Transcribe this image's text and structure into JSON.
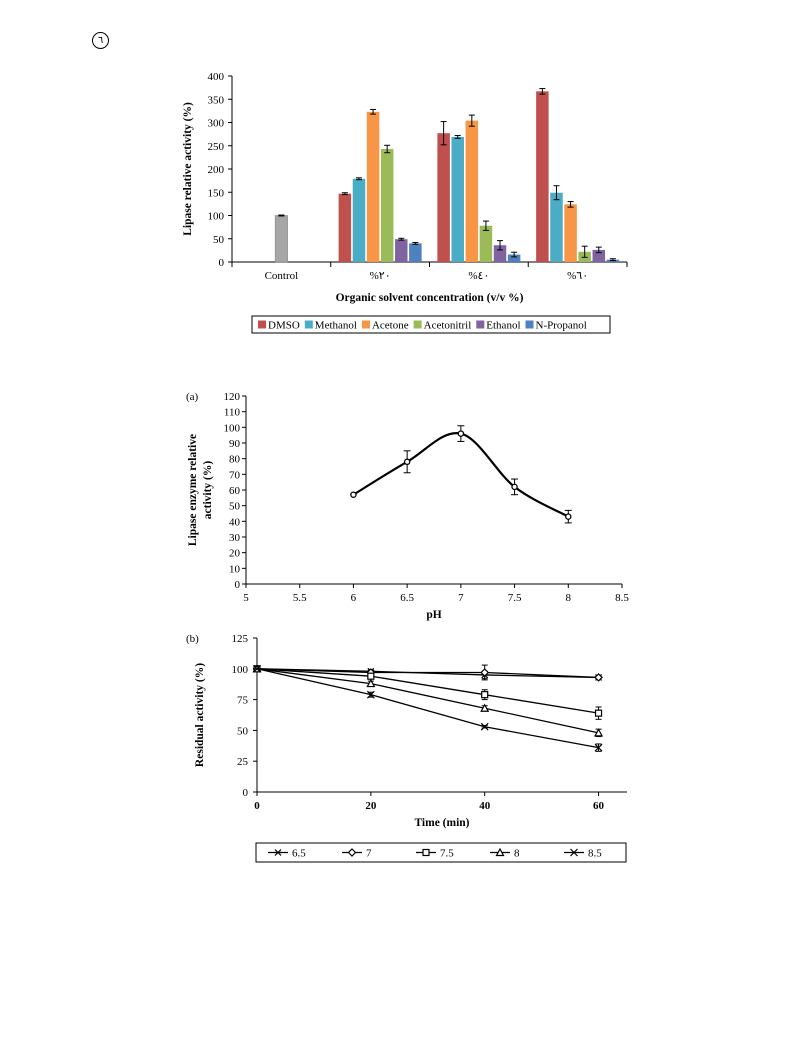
{
  "page_mark": "٦",
  "chart_data": [
    {
      "type": "bar",
      "title": "",
      "xlabel": "Organic solvent concentration (v/v %)",
      "ylabel": "Lipase relative activity (%)",
      "ylim": [
        0,
        400
      ],
      "yticks": [
        0,
        50,
        100,
        150,
        200,
        250,
        300,
        350,
        400
      ],
      "categories": [
        "Control",
        "%٢٠",
        "%٤٠",
        "%٦٠"
      ],
      "legend_position": "bottom",
      "grid": false,
      "control": {
        "value": 100,
        "error": 1,
        "color": "#a6a6a6"
      },
      "series": [
        {
          "name": "DMSO",
          "color": "#c0504d",
          "values": [
            null,
            147,
            277,
            367
          ],
          "errors": [
            null,
            2,
            25,
            6
          ]
        },
        {
          "name": "Methanol",
          "color": "#4bacc6",
          "values": [
            null,
            179,
            269,
            149
          ],
          "errors": [
            null,
            2,
            3,
            15
          ]
        },
        {
          "name": "Acetone",
          "color": "#f79646",
          "values": [
            null,
            323,
            304,
            124
          ],
          "errors": [
            null,
            5,
            12,
            6
          ]
        },
        {
          "name": "Acetonitril",
          "color": "#9bbb59",
          "values": [
            null,
            243,
            78,
            22
          ],
          "errors": [
            null,
            8,
            10,
            12
          ]
        },
        {
          "name": "Ethanol",
          "color": "#8064a2",
          "values": [
            null,
            49,
            36,
            26
          ],
          "errors": [
            null,
            2,
            10,
            6
          ]
        },
        {
          "name": "N-Propanol",
          "color": "#4f81bd",
          "values": [
            null,
            40,
            16,
            5
          ],
          "errors": [
            null,
            2,
            5,
            2
          ]
        }
      ]
    },
    {
      "type": "line",
      "panel_label": "(a)",
      "title": "",
      "xlabel": "pH",
      "ylabel": "Lipase enzyme relative activity (%)",
      "ylabel_lines": [
        "Lipase enzyme relative",
        "activity (%)"
      ],
      "xlim": [
        5,
        8.5
      ],
      "ylim": [
        0,
        120
      ],
      "xticks": [
        5,
        5.5,
        6,
        6.5,
        7,
        7.5,
        8,
        8.5
      ],
      "yticks": [
        0,
        10,
        20,
        30,
        40,
        50,
        60,
        70,
        80,
        90,
        100,
        110,
        120
      ],
      "grid": false,
      "series": [
        {
          "name": "",
          "x": [
            6,
            6.5,
            7,
            7.5,
            8
          ],
          "y": [
            57,
            78,
            96,
            62,
            43
          ],
          "errors": [
            0,
            7,
            5,
            5,
            4
          ]
        }
      ]
    },
    {
      "type": "line",
      "panel_label": "(b)",
      "title": "",
      "xlabel": "Time (min)",
      "ylabel": "Residual activity (%)",
      "xlim": [
        0,
        65
      ],
      "ylim": [
        0,
        125
      ],
      "xticks": [
        0,
        20,
        40,
        60
      ],
      "yticks": [
        0,
        25,
        50,
        75,
        100,
        125
      ],
      "legend_position": "bottom",
      "grid": false,
      "series": [
        {
          "name": "6.5",
          "marker": "asterisk",
          "x": [
            0,
            20,
            40,
            60
          ],
          "y": [
            100,
            98,
            95,
            93
          ],
          "errors": [
            0,
            1,
            3,
            1
          ]
        },
        {
          "name": "7",
          "marker": "diamond",
          "x": [
            0,
            20,
            40,
            60
          ],
          "y": [
            100,
            97,
            97,
            93
          ],
          "errors": [
            0,
            1,
            6,
            1
          ]
        },
        {
          "name": "7.5",
          "marker": "square",
          "x": [
            0,
            20,
            40,
            60
          ],
          "y": [
            100,
            94,
            79,
            64
          ],
          "errors": [
            0,
            2,
            4,
            5
          ]
        },
        {
          "name": "8",
          "marker": "triangle",
          "x": [
            0,
            20,
            40,
            60
          ],
          "y": [
            100,
            88,
            68,
            48
          ],
          "errors": [
            0,
            2,
            2,
            3
          ]
        },
        {
          "name": "8.5",
          "marker": "x",
          "x": [
            0,
            20,
            40,
            60
          ],
          "y": [
            100,
            79,
            53,
            36
          ],
          "errors": [
            0,
            2,
            1,
            3
          ]
        }
      ]
    }
  ]
}
